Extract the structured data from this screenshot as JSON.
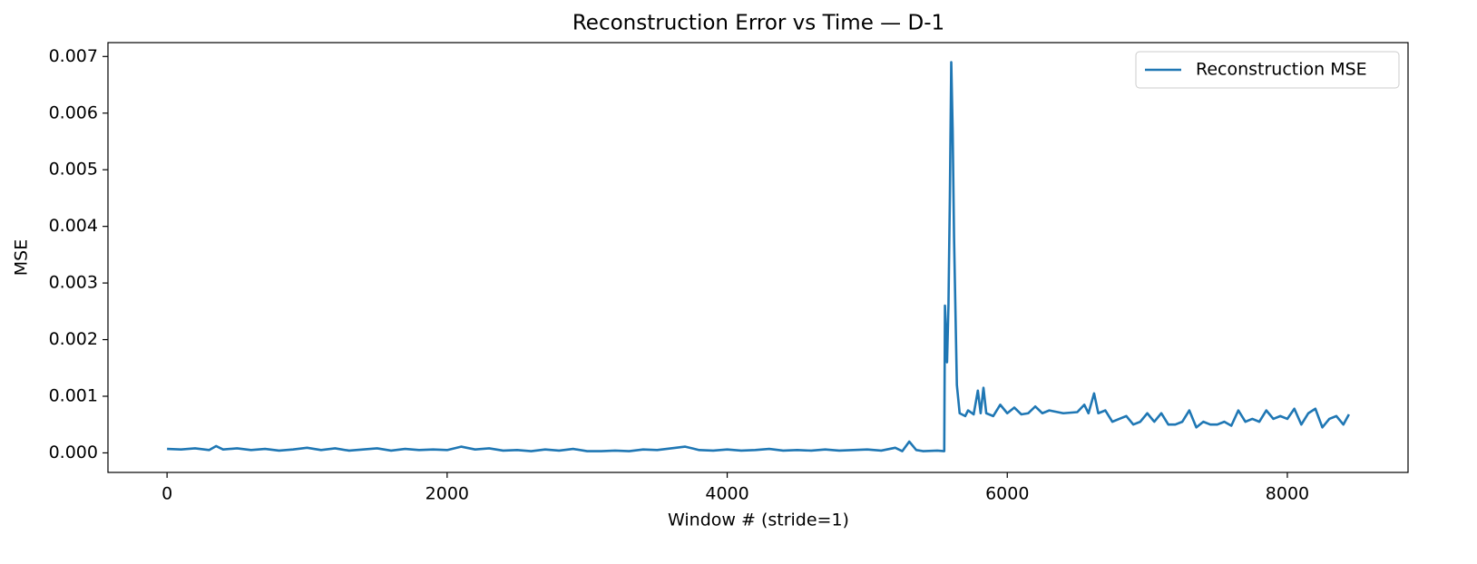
{
  "chart_data": {
    "type": "line",
    "title": "Reconstruction Error vs Time — D-1",
    "x_label": "Window # (stride=1)",
    "y_label": "MSE",
    "legend": "upper right",
    "xlim": [
      -422,
      8862
    ],
    "ylim": [
      -0.000345,
      0.007245
    ],
    "xticks": [
      0,
      2000,
      4000,
      6000,
      8000
    ],
    "yticks": [
      {
        "value": 0,
        "label": "0.000"
      },
      {
        "value": 0.001,
        "label": "0.001"
      },
      {
        "value": 0.002,
        "label": "0.002"
      },
      {
        "value": 0.003,
        "label": "0.003"
      },
      {
        "value": 0.004,
        "label": "0.004"
      },
      {
        "value": 0.005,
        "label": "0.005"
      },
      {
        "value": 0.006,
        "label": "0.006"
      },
      {
        "value": 0.007,
        "label": "0.007"
      }
    ],
    "x": [
      0,
      100,
      200,
      300,
      350,
      400,
      500,
      600,
      700,
      800,
      900,
      1000,
      1100,
      1200,
      1300,
      1400,
      1500,
      1600,
      1700,
      1800,
      1900,
      2000,
      2100,
      2200,
      2300,
      2400,
      2500,
      2600,
      2700,
      2800,
      2900,
      3000,
      3100,
      3200,
      3300,
      3400,
      3500,
      3600,
      3700,
      3800,
      3900,
      4000,
      4100,
      4200,
      4300,
      4400,
      4500,
      4600,
      4700,
      4800,
      4900,
      5000,
      5100,
      5200,
      5250,
      5300,
      5350,
      5400,
      5500,
      5550,
      5555,
      5570,
      5580,
      5590,
      5600,
      5610,
      5620,
      5640,
      5660,
      5700,
      5720,
      5760,
      5790,
      5810,
      5830,
      5850,
      5900,
      5950,
      6000,
      6050,
      6100,
      6150,
      6200,
      6250,
      6300,
      6400,
      6500,
      6550,
      6580,
      6620,
      6650,
      6700,
      6750,
      6800,
      6850,
      6900,
      6950,
      7000,
      7050,
      7100,
      7150,
      7200,
      7250,
      7300,
      7350,
      7400,
      7450,
      7500,
      7550,
      7600,
      7650,
      7700,
      7750,
      7800,
      7850,
      7900,
      7950,
      8000,
      8050,
      8100,
      8150,
      8200,
      8250,
      8300,
      8350,
      8400,
      8440
    ],
    "series": [
      {
        "name": "Reconstruction MSE",
        "color": "#1f77b4",
        "values": [
          7e-05,
          6e-05,
          8e-05,
          5e-05,
          0.00012,
          6e-05,
          8e-05,
          5e-05,
          7e-05,
          4e-05,
          6e-05,
          9e-05,
          5e-05,
          8e-05,
          4e-05,
          6e-05,
          8e-05,
          4e-05,
          7e-05,
          5e-05,
          6e-05,
          5e-05,
          0.00011,
          6e-05,
          8e-05,
          4e-05,
          5e-05,
          3e-05,
          6e-05,
          4e-05,
          7e-05,
          3e-05,
          3e-05,
          4e-05,
          3e-05,
          6e-05,
          5e-05,
          8e-05,
          0.00011,
          5e-05,
          4e-05,
          6e-05,
          4e-05,
          5e-05,
          7e-05,
          4e-05,
          5e-05,
          4e-05,
          6e-05,
          4e-05,
          5e-05,
          6e-05,
          4e-05,
          9e-05,
          3e-05,
          0.0002,
          5e-05,
          3e-05,
          4e-05,
          3e-05,
          0.0026,
          0.0016,
          0.0026,
          0.0045,
          0.0069,
          0.0057,
          0.0038,
          0.0012,
          0.0007,
          0.00065,
          0.00075,
          0.00068,
          0.0011,
          0.0007,
          0.00115,
          0.0007,
          0.00065,
          0.00085,
          0.0007,
          0.0008,
          0.00068,
          0.0007,
          0.00082,
          0.0007,
          0.00075,
          0.0007,
          0.00072,
          0.00085,
          0.0007,
          0.00105,
          0.0007,
          0.00075,
          0.00055,
          0.0006,
          0.00065,
          0.0005,
          0.00055,
          0.0007,
          0.00055,
          0.0007,
          0.0005,
          0.0005,
          0.00055,
          0.00075,
          0.00045,
          0.00055,
          0.0005,
          0.0005,
          0.00055,
          0.00048,
          0.00075,
          0.00055,
          0.0006,
          0.00055,
          0.00075,
          0.0006,
          0.00065,
          0.0006,
          0.00078,
          0.0005,
          0.0007,
          0.00078,
          0.00045,
          0.0006,
          0.00065,
          0.0005,
          0.00068
        ]
      }
    ]
  }
}
